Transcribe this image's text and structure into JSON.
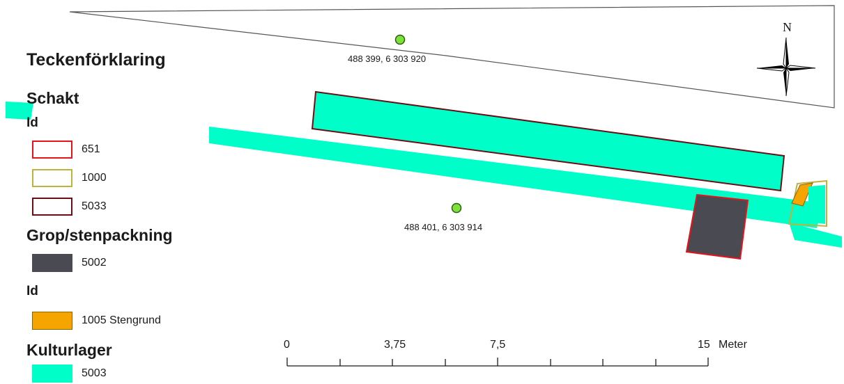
{
  "legend": {
    "title": "Teckenförklaring",
    "groups": [
      {
        "heading": "Schakt",
        "subheading": "Id",
        "items": [
          {
            "label": "651",
            "fill": "#ffffff",
            "stroke": "#e8121a"
          },
          {
            "label": "1000",
            "fill": "#ffffff",
            "stroke": "#c0b23a"
          },
          {
            "label": "5033",
            "fill": "#ffffff",
            "stroke": "#6b0d13"
          }
        ]
      },
      {
        "heading": "Grop/stenpackning",
        "items": [
          {
            "label": "5002",
            "fill": "#4a4a52",
            "stroke": "#4a4a52"
          }
        ]
      },
      {
        "subheading": "Id",
        "items": [
          {
            "label": "1005 Stengrund",
            "fill": "#f5a400",
            "stroke": "#8c6200"
          }
        ]
      },
      {
        "heading": "Kulturlager",
        "items": [
          {
            "label": "5003",
            "fill": "#00ffc8",
            "stroke": "#00ffc8"
          }
        ]
      }
    ]
  },
  "points": [
    {
      "label": "488 399, 6 303 920",
      "color": "#7ee03a"
    },
    {
      "label": "488 401, 6 303 914",
      "color": "#7ee03a"
    }
  ],
  "scalebar": {
    "labels": [
      "0",
      "3,75",
      "7,5",
      "15"
    ],
    "unit": "Meter"
  },
  "compass": {
    "label": "N"
  },
  "colors": {
    "kulturlager": "#00ffc8",
    "schakt_5033": "#6b0d13",
    "schakt_651": "#e8121a",
    "schakt_1000": "#c0b23a",
    "grop": "#4a4a52",
    "stengrund": "#f5a400",
    "point": "#7ee03a",
    "outline": "#555555"
  },
  "icons": [
    "north-arrow-icon",
    "survey-point-icon"
  ]
}
